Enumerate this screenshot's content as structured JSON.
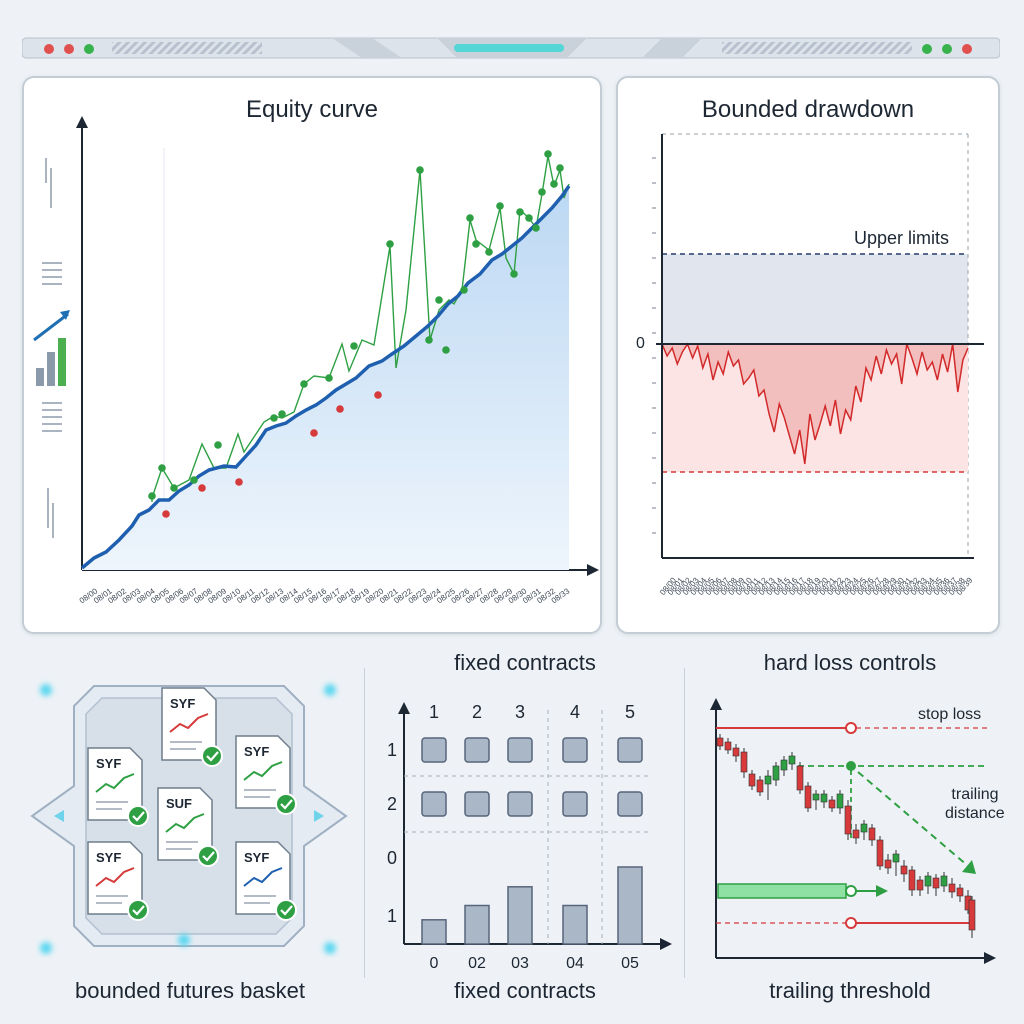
{
  "panels": {
    "equity": {
      "title": "Equity curve",
      "date_labels": [
        "08/00",
        "08/01",
        "08/02",
        "08/03",
        "08/04",
        "08/05",
        "08/06",
        "08/07",
        "08/08",
        "08/09",
        "08/10",
        "08/11",
        "08/12",
        "08/13",
        "08/14",
        "08/15",
        "08/16",
        "08/17",
        "08/18",
        "08/19",
        "08/20",
        "08/21",
        "08/22",
        "08/23",
        "08/24",
        "08/25",
        "08/26",
        "08/27",
        "08/28",
        "08/29",
        "08/30",
        "08/31",
        "08/32",
        "08/33"
      ]
    },
    "drawdown": {
      "title": "Bounded drawdown",
      "upper_label": "Upper limits",
      "zero_label": "0",
      "date_labels": [
        "08/00",
        "08/01",
        "08/02",
        "08/03",
        "08/04",
        "08/05",
        "08/06",
        "08/07",
        "08/08",
        "08/09",
        "08/10",
        "08/11",
        "08/12",
        "08/13",
        "08/14",
        "08/15",
        "08/16",
        "08/17",
        "08/18",
        "08/19",
        "08/20",
        "08/21",
        "08/22",
        "08/23",
        "08/24",
        "08/25",
        "08/26",
        "08/27",
        "08/28",
        "08/29",
        "08/30",
        "08/31",
        "08/32",
        "08/33",
        "08/34",
        "08/35",
        "08/36",
        "08/37",
        "08/38",
        "08/39"
      ]
    },
    "basket": {
      "caption": "bounded futures basket",
      "docs": [
        "SYF",
        "SYF",
        "SYF",
        "SUF",
        "SYF",
        "SYF"
      ]
    },
    "contracts": {
      "title": "fixed contracts",
      "caption": "fixed contracts",
      "col_labels": [
        "1",
        "2",
        "3",
        "4",
        "5"
      ],
      "row_labels": [
        "1",
        "2",
        "0",
        "1"
      ],
      "x_labels": [
        "0",
        "02",
        "03",
        "04",
        "05"
      ],
      "bar_values": [
        0.22,
        0.35,
        0.52,
        0.35,
        0.7
      ]
    },
    "loss": {
      "title": "hard loss controls",
      "caption": "trailing threshold",
      "stop_label": "stop loss",
      "trail_label_1": "trailing",
      "trail_label_2": "distance"
    }
  },
  "colors": {
    "equity_line": "#1f5fb0",
    "up_marker": "#2ea043",
    "down_marker": "#d63a3a",
    "drawdown_fill": "#f2b9b9",
    "upper_band": "#e1e6ee",
    "bar": "#aab7c6"
  }
}
